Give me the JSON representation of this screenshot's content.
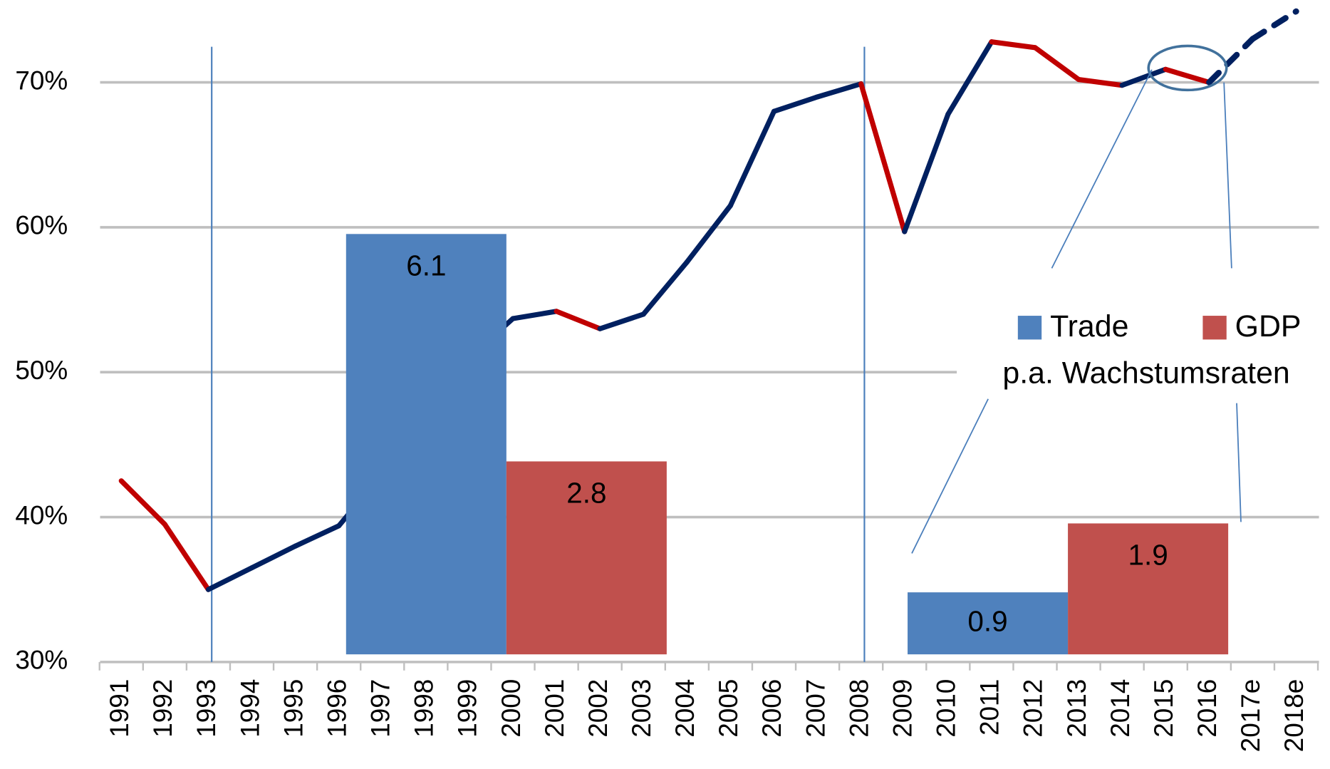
{
  "chart_data": {
    "type": "line",
    "categories": [
      "1991",
      "1992",
      "1993",
      "1994",
      "1995",
      "1996",
      "1997",
      "1998",
      "1999",
      "2000",
      "2001",
      "2002",
      "2003",
      "2004",
      "2005",
      "2006",
      "2007",
      "2008",
      "2009",
      "2010",
      "2011",
      "2012",
      "2013",
      "2014",
      "2015",
      "2016",
      "2017e",
      "2018e"
    ],
    "values": [
      42.5,
      39.5,
      35,
      36.5,
      38,
      39.4,
      43,
      47,
      51,
      53.7,
      54.2,
      53,
      54,
      57.6,
      61.5,
      68,
      69,
      69.9,
      59.7,
      67.8,
      72.8,
      72.4,
      70.2,
      69.8,
      70.9,
      70,
      73,
      74.9
    ],
    "segment_colors": [
      null,
      "#c00000",
      "#c00000",
      "#002060",
      "#002060",
      "#002060",
      "#002060",
      "#002060",
      "#002060",
      "#002060",
      "#002060",
      "#c00000",
      "#002060",
      "#002060",
      "#002060",
      "#002060",
      "#002060",
      "#002060",
      "#c00000",
      "#002060",
      "#002060",
      "#c00000",
      "#c00000",
      "#c00000",
      "#002060",
      "#c00000",
      "#002060",
      "#002060"
    ],
    "segment_dashed": [
      null,
      false,
      false,
      false,
      false,
      false,
      false,
      false,
      false,
      false,
      false,
      false,
      false,
      false,
      false,
      false,
      false,
      false,
      false,
      false,
      false,
      false,
      false,
      false,
      false,
      false,
      true,
      true
    ],
    "vlines": [
      "1993",
      "2008"
    ],
    "ylim": [
      30,
      75
    ],
    "yticks": [
      {
        "value": 30,
        "label": "30%"
      },
      {
        "value": 40,
        "label": "40%"
      },
      {
        "value": 50,
        "label": "50%"
      },
      {
        "value": 60,
        "label": "60%"
      },
      {
        "value": 70,
        "label": "70%"
      }
    ],
    "grid": true,
    "bars": {
      "type": "bar",
      "annotation": "p.a. Wachstumsraten",
      "ylim": [
        0,
        8.3
      ],
      "series": [
        {
          "name": "Trade",
          "color": "#4f81bd",
          "values": [
            6.1,
            0.9
          ]
        },
        {
          "name": "GDP",
          "color": "#c0504d",
          "values": [
            2.8,
            1.9
          ]
        }
      ]
    }
  }
}
